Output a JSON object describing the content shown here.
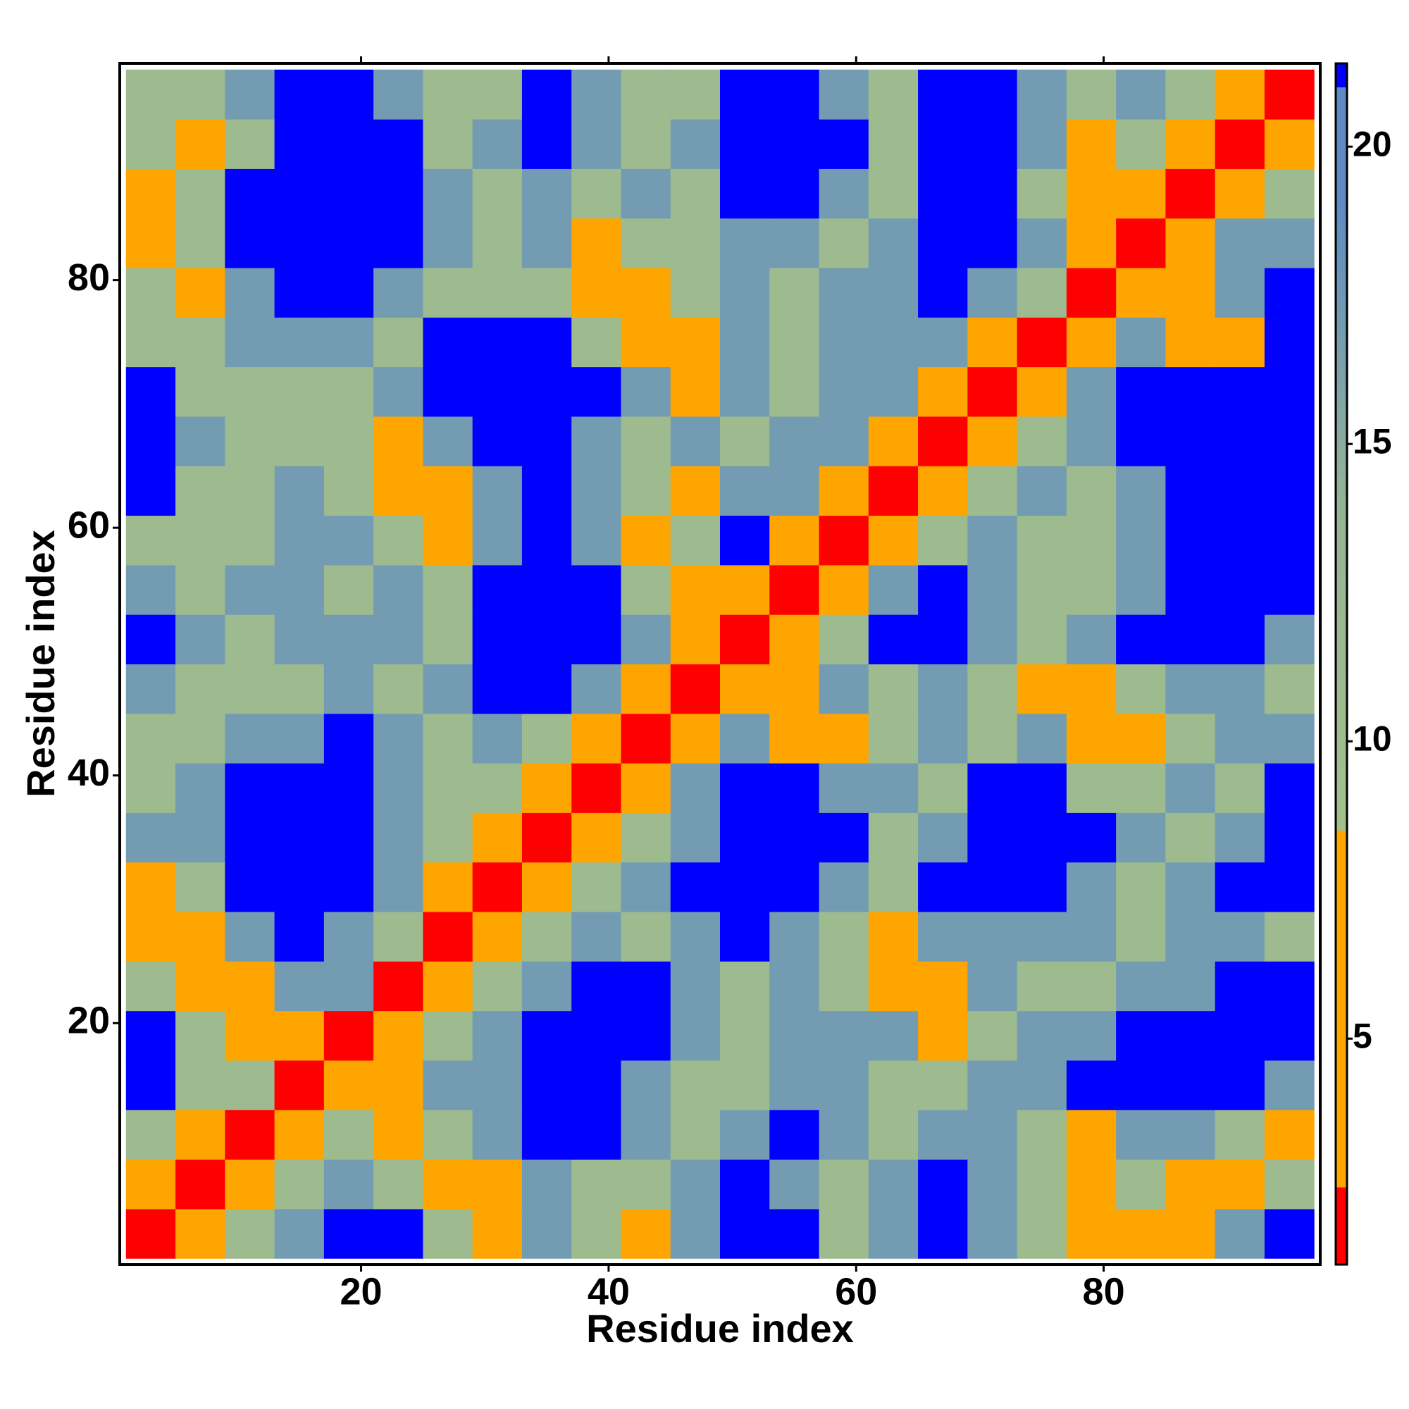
{
  "chart_data": {
    "type": "heatmap",
    "xlabel": "Residue index",
    "ylabel": "Residue index",
    "x": [
      3,
      7,
      11,
      15,
      19,
      23,
      27,
      31,
      35,
      39,
      43,
      47,
      51,
      55,
      59,
      63,
      67,
      71,
      75,
      79,
      83,
      87,
      91,
      95
    ],
    "y": [
      3,
      7,
      11,
      15,
      19,
      23,
      27,
      31,
      35,
      39,
      43,
      47,
      51,
      55,
      59,
      63,
      67,
      71,
      75,
      79,
      83,
      87,
      91,
      95
    ],
    "z": [
      [
        1.5,
        6,
        11,
        17,
        21.3,
        21.3,
        11,
        6,
        17,
        11,
        6,
        17,
        21.3,
        21.3,
        11,
        17,
        21.3,
        17,
        11,
        6,
        6,
        6,
        17,
        21.3
      ],
      [
        6,
        1.5,
        6,
        11,
        17,
        11,
        6,
        6,
        17,
        11,
        11,
        17,
        21.3,
        17,
        11,
        17,
        21.3,
        17,
        11,
        6,
        11,
        6,
        6,
        11
      ],
      [
        11,
        6,
        1.5,
        6,
        11,
        6,
        11,
        17,
        21.3,
        21.3,
        17,
        11,
        17,
        21.3,
        17,
        11,
        17,
        17,
        11,
        6,
        17,
        17,
        11,
        6
      ],
      [
        21.3,
        11,
        11,
        1.5,
        6,
        6,
        17,
        17,
        21.3,
        21.3,
        17,
        11,
        11,
        17,
        17,
        11,
        11,
        17,
        17,
        21.3,
        21.3,
        21.3,
        21.3,
        17
      ],
      [
        21.3,
        11,
        6,
        6,
        1.5,
        6,
        11,
        17,
        21.3,
        21.3,
        21.3,
        17,
        11,
        17,
        17,
        17,
        6,
        11,
        17,
        17,
        21.3,
        21.3,
        21.3,
        21.3
      ],
      [
        11,
        6,
        6,
        17,
        17,
        1.5,
        6,
        11,
        17,
        21.3,
        21.3,
        17,
        11,
        17,
        11,
        6,
        6,
        17,
        11,
        11,
        17,
        17,
        21.3,
        21.3
      ],
      [
        6,
        6,
        17,
        21.3,
        17,
        11,
        1.5,
        6,
        11,
        17,
        11,
        17,
        21.3,
        17,
        11,
        6,
        17,
        17,
        17,
        17,
        11,
        17,
        17,
        11
      ],
      [
        6,
        11,
        21.3,
        21.3,
        21.3,
        17,
        6,
        1.5,
        6,
        11,
        17,
        21.3,
        21.3,
        21.3,
        17,
        11,
        21.3,
        21.3,
        21.3,
        17,
        11,
        17,
        21.3,
        21.3
      ],
      [
        17,
        17,
        21.3,
        21.3,
        21.3,
        17,
        11,
        6,
        1.5,
        6,
        11,
        17,
        21.3,
        21.3,
        21.3,
        11,
        17,
        21.3,
        21.3,
        21.3,
        17,
        11,
        17,
        21.3
      ],
      [
        11,
        17,
        21.3,
        21.3,
        21.3,
        17,
        11,
        11,
        6,
        1.5,
        6,
        17,
        21.3,
        21.3,
        17,
        17,
        11,
        21.3,
        21.3,
        11,
        11,
        17,
        11,
        21.3
      ],
      [
        11,
        11,
        17,
        17,
        21.3,
        17,
        11,
        17,
        11,
        6,
        1.5,
        6,
        17,
        6,
        6,
        11,
        17,
        11,
        17,
        6,
        6,
        11,
        17,
        17
      ],
      [
        17,
        11,
        11,
        11,
        17,
        11,
        17,
        21.3,
        21.3,
        17,
        6,
        1.5,
        6,
        6,
        17,
        11,
        17,
        11,
        6,
        6,
        11,
        17,
        17,
        11
      ],
      [
        21.3,
        17,
        11,
        17,
        17,
        17,
        11,
        21.3,
        21.3,
        21.3,
        17,
        6,
        1.5,
        6,
        11,
        21.3,
        21.3,
        17,
        11,
        17,
        21.3,
        21.3,
        21.3,
        17
      ],
      [
        17,
        11,
        17,
        17,
        11,
        17,
        11,
        21.3,
        21.3,
        21.3,
        11,
        6,
        6,
        1.5,
        6,
        17,
        21.3,
        17,
        11,
        11,
        17,
        21.3,
        21.3,
        21.3
      ],
      [
        11,
        11,
        11,
        17,
        17,
        11,
        6,
        17,
        21.3,
        17,
        6,
        11,
        21.3,
        6,
        1.5,
        6,
        11,
        17,
        11,
        11,
        17,
        21.3,
        21.3,
        21.3
      ],
      [
        21.3,
        11,
        11,
        17,
        11,
        6,
        6,
        17,
        21.3,
        17,
        11,
        6,
        17,
        17,
        6,
        1.5,
        6,
        11,
        17,
        11,
        17,
        21.3,
        21.3,
        21.3
      ],
      [
        21.3,
        17,
        11,
        11,
        11,
        6,
        17,
        21.3,
        21.3,
        17,
        11,
        17,
        11,
        17,
        17,
        6,
        1.5,
        6,
        11,
        17,
        21.3,
        21.3,
        21.3,
        21.3
      ],
      [
        21.3,
        11,
        11,
        11,
        11,
        17,
        21.3,
        21.3,
        21.3,
        21.3,
        17,
        6,
        17,
        11,
        17,
        17,
        6,
        1.5,
        6,
        17,
        21.3,
        21.3,
        21.3,
        21.3
      ],
      [
        11,
        11,
        17,
        17,
        17,
        11,
        21.3,
        21.3,
        21.3,
        11,
        6,
        6,
        17,
        11,
        17,
        17,
        17,
        6,
        1.5,
        6,
        17,
        6,
        6,
        21.3
      ],
      [
        11,
        6,
        17,
        21.3,
        21.3,
        17,
        11,
        11,
        11,
        6,
        6,
        11,
        17,
        11,
        17,
        17,
        21.3,
        17,
        11,
        1.5,
        6,
        6,
        17,
        21.3
      ],
      [
        6,
        11,
        21.3,
        21.3,
        21.3,
        21.3,
        17,
        11,
        17,
        6,
        11,
        11,
        17,
        17,
        11,
        17,
        21.3,
        21.3,
        17,
        6,
        1.5,
        6,
        17,
        17
      ],
      [
        6,
        11,
        21.3,
        21.3,
        21.3,
        21.3,
        17,
        11,
        17,
        11,
        17,
        11,
        21.3,
        21.3,
        17,
        11,
        21.3,
        21.3,
        11,
        6,
        6,
        1.5,
        6,
        11
      ],
      [
        11,
        6,
        11,
        21.3,
        21.3,
        21.3,
        11,
        17,
        21.3,
        17,
        11,
        17,
        21.3,
        21.3,
        21.3,
        11,
        21.3,
        21.3,
        17,
        6,
        11,
        6,
        1.5,
        6
      ],
      [
        11,
        11,
        17,
        21.3,
        21.3,
        17,
        11,
        11,
        21.3,
        17,
        11,
        11,
        21.3,
        21.3,
        17,
        11,
        21.3,
        21.3,
        17,
        11,
        17,
        11,
        6,
        1.5
      ]
    ],
    "xlim": [
      0.5,
      97.5
    ],
    "ylim": [
      0.5,
      97.5
    ],
    "xticks": [
      20,
      40,
      60,
      80
    ],
    "yticks": [
      20,
      40,
      60,
      80
    ],
    "colorscale": [
      [
        1.2,
        "#ff0000"
      ],
      [
        2.5,
        "#ff0000"
      ],
      [
        2.5,
        "#ffa500"
      ],
      [
        8.5,
        "#ffa500"
      ],
      [
        8.5,
        "#a4c08a"
      ],
      [
        14,
        "#94b496"
      ],
      [
        19,
        "#5d8cc4"
      ],
      [
        21,
        "#5d8cc4"
      ],
      [
        21,
        "#0000ff"
      ],
      [
        21.4,
        "#0000ff"
      ]
    ],
    "colorbar_lim": [
      1.2,
      21.4
    ],
    "colorbar_ticks": [
      5,
      10,
      15,
      20
    ]
  }
}
